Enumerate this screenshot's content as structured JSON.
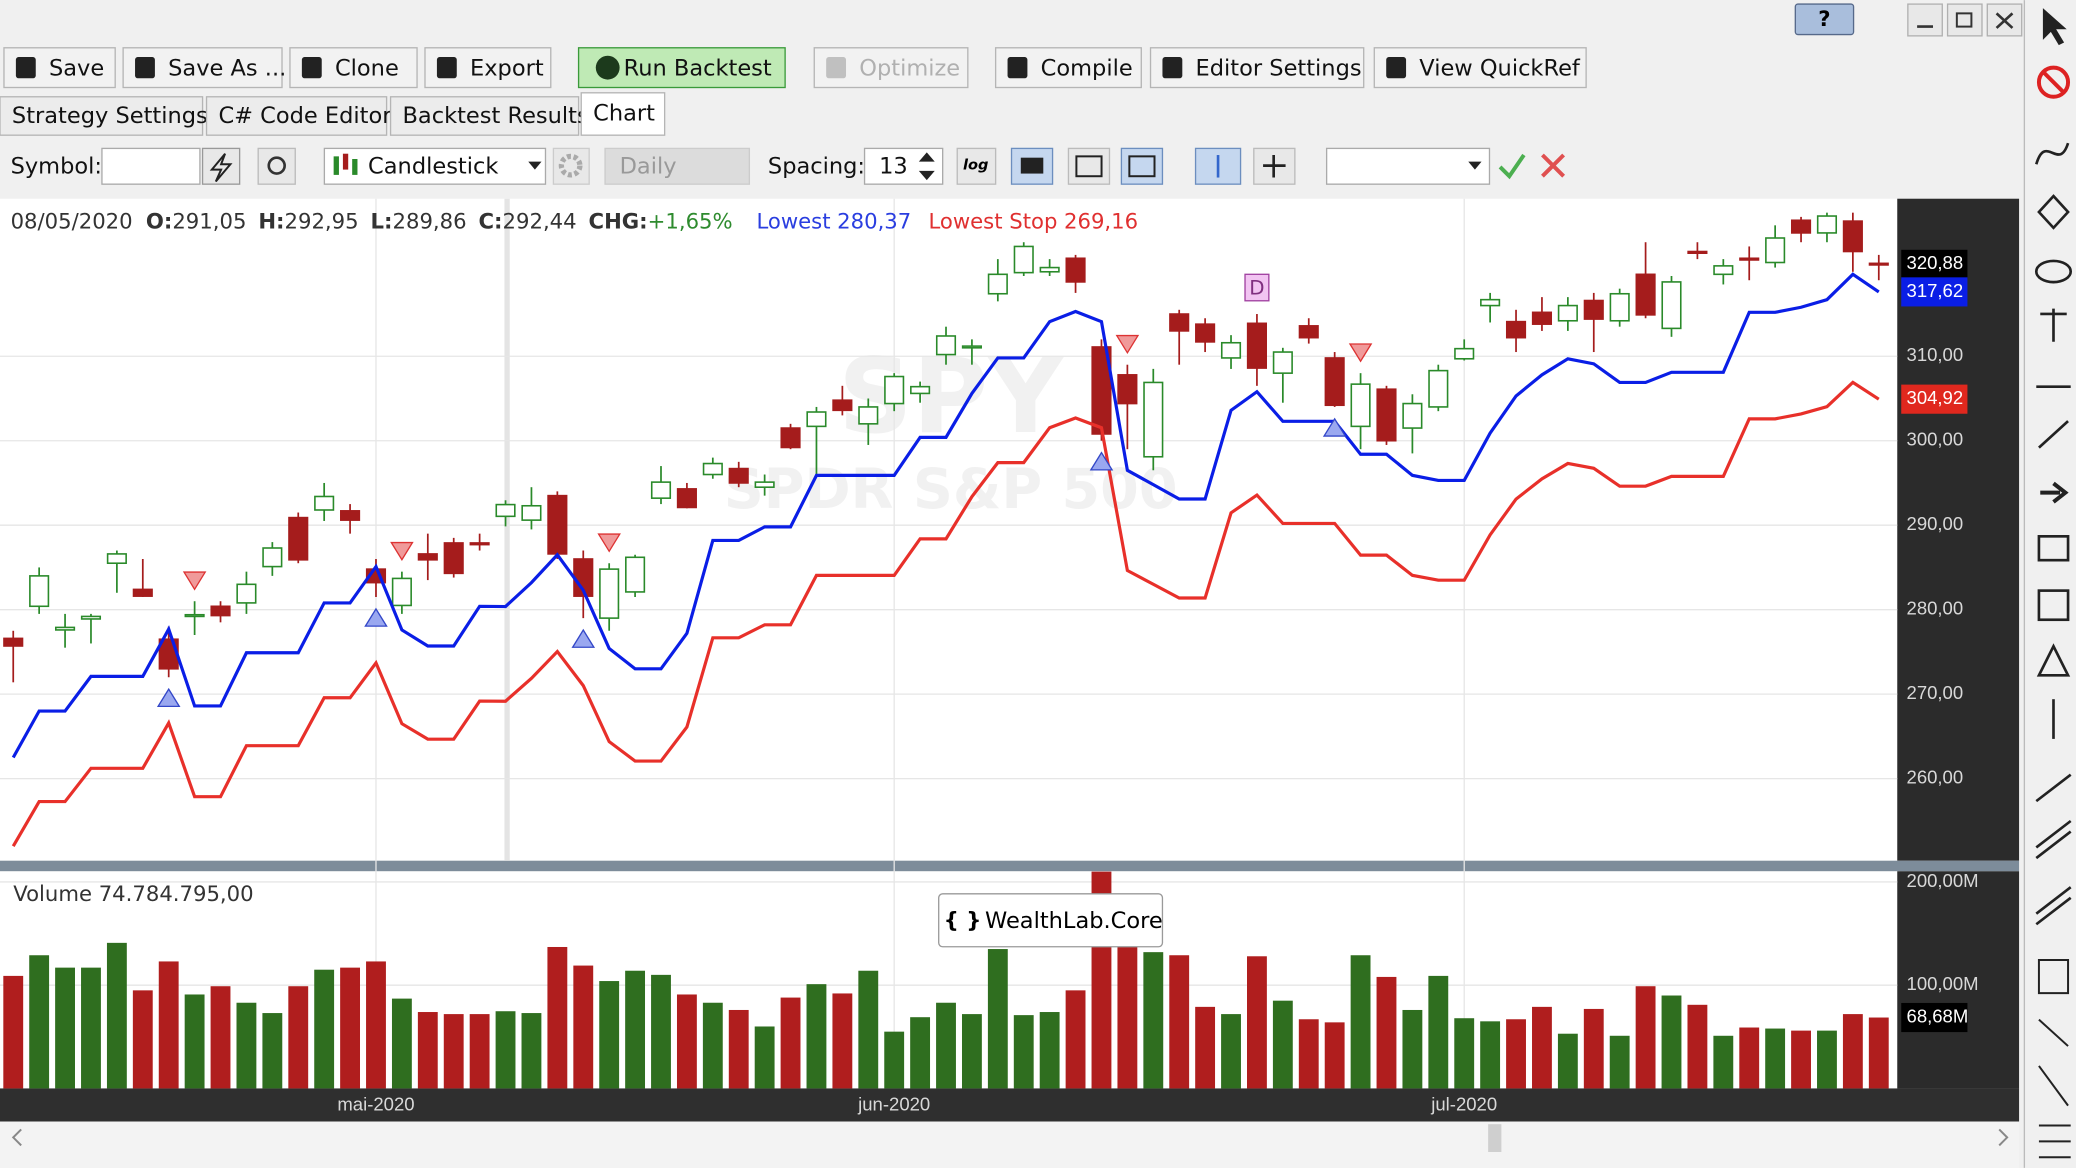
{
  "window": {
    "help": "?"
  },
  "toolbar": [
    "Save",
    "Save As ...",
    "Clone",
    "Export",
    "Run Backtest",
    "Optimize",
    "Compile",
    "Editor Settings",
    "View QuickRef"
  ],
  "tabs": [
    "Strategy Settings",
    "C# Code Editor",
    "Backtest Results",
    "Chart"
  ],
  "active_tab": "Chart",
  "symbol_bar": {
    "symbol_label": "Symbol:",
    "chart_style": "Candlestick",
    "scale": "Daily",
    "spacing_label": "Spacing:",
    "spacing": "13",
    "log": "log"
  },
  "header": {
    "date": "08/05/2020",
    "open_label": "O:",
    "open": "291,05",
    "high_label": "H:",
    "high": "292,95",
    "low_label": "L:",
    "low": "289,86",
    "close_label": "C:",
    "close": "292,44",
    "chg_label": "CHG:",
    "chg": "+1,65%",
    "lowest": "280,37",
    "lowest_stop": "269,16"
  },
  "watermark": {
    "symbol": "SPY",
    "name": "SPDR S&P 500"
  },
  "tooltip": {
    "icon": "{ }",
    "text": "WealthLab.Core"
  },
  "chart_data": [
    {
      "type": "candlestick",
      "categories": [
        null,
        null,
        null,
        null,
        null,
        null,
        null,
        null,
        null,
        null,
        null,
        null,
        null,
        null,
        "mai-2020",
        null,
        null,
        null,
        null,
        null,
        null,
        null,
        null,
        null,
        null,
        null,
        null,
        null,
        null,
        null,
        null,
        null,
        null,
        null,
        "jun-2020",
        null,
        null,
        null,
        null,
        null,
        null,
        null,
        null,
        null,
        null,
        null,
        null,
        null,
        null,
        null,
        null,
        null,
        null,
        null,
        null,
        null,
        "jul-2020",
        null,
        null,
        null,
        null,
        null,
        null,
        null,
        null,
        null,
        null,
        null,
        null,
        null,
        null,
        null,
        null
      ],
      "open": [
        276.6,
        280.4,
        277.6,
        278.9,
        285.5,
        282.4,
        276.5,
        279.2,
        280.4,
        280.8,
        285.1,
        290.9,
        291.8,
        291.7,
        284.8,
        280.5,
        286.6,
        287.9,
        287.9,
        291.05,
        290.6,
        293.5,
        286.0,
        279.0,
        282.1,
        293.2,
        294.3,
        296.0,
        296.7,
        294.5,
        301.5,
        301.7,
        304.8,
        302.0,
        304.4,
        305.6,
        310.2,
        311.0,
        317.4,
        319.9,
        320.0,
        321.6,
        311.1,
        307.8,
        298.1,
        315.0,
        313.8,
        309.8,
        313.9,
        308.0,
        313.6,
        309.8,
        301.7,
        306.1,
        301.5,
        304.0,
        309.7,
        316.0,
        314.1,
        315.2,
        314.2,
        316.6,
        314.2,
        319.7,
        313.3,
        322.4,
        319.7,
        321.6,
        321.1,
        326.1,
        324.6,
        326.0,
        321.0
      ],
      "high": [
        277.5,
        285,
        279.5,
        279.5,
        287,
        286,
        278,
        281,
        281,
        284.5,
        288,
        291.5,
        295,
        292.5,
        286,
        284.5,
        289,
        288.5,
        289,
        292.95,
        294.5,
        294,
        287,
        285.5,
        286.5,
        297,
        295,
        298,
        297.5,
        296,
        302,
        304,
        306.5,
        305,
        308,
        307,
        313.5,
        312,
        321.5,
        323.5,
        321.5,
        322,
        312,
        309,
        308.5,
        315.5,
        314.5,
        312.5,
        315,
        311,
        314.5,
        310.5,
        308,
        306.5,
        305.5,
        309,
        312,
        317.5,
        315.5,
        317,
        317,
        317.5,
        318,
        323.5,
        319.5,
        323.5,
        321.5,
        323,
        325.5,
        326.5,
        327,
        327,
        322
      ],
      "low": [
        271.4,
        279.5,
        275.5,
        276,
        282,
        281.5,
        272,
        277,
        278.5,
        279.5,
        284,
        285.5,
        290.5,
        289,
        281.5,
        279.5,
        283.5,
        283.8,
        287,
        289.86,
        289.5,
        286,
        279,
        277.5,
        281.5,
        292.5,
        292,
        295.5,
        294.5,
        293.5,
        299,
        296,
        303,
        299.5,
        303.5,
        304.5,
        309,
        309,
        316.5,
        319.5,
        319.5,
        317.5,
        300,
        299,
        296.5,
        309,
        310.5,
        308.5,
        306.5,
        304.5,
        311.5,
        304,
        299,
        299.5,
        298.5,
        303.5,
        309.5,
        314,
        310.5,
        313,
        313,
        310.5,
        313.5,
        314.5,
        312.3,
        321.5,
        318.5,
        319,
        320.5,
        323.5,
        323.5,
        320,
        319
      ],
      "close": [
        275.7,
        284.0,
        277.9,
        279.2,
        286.6,
        281.6,
        273.0,
        279.4,
        279.3,
        283.0,
        287.3,
        285.9,
        293.4,
        290.6,
        283.2,
        283.7,
        285.9,
        284.3,
        287.7,
        292.44,
        292.3,
        286.6,
        281.6,
        284.8,
        286.2,
        295.1,
        292.1,
        297.3,
        295.0,
        295.1,
        299.2,
        303.4,
        303.6,
        304.0,
        307.6,
        306.4,
        312.4,
        311.2,
        319.7,
        323.0,
        320.5,
        318.8,
        300.8,
        304.4,
        306.9,
        313.0,
        311.7,
        311.6,
        308.6,
        310.5,
        312.2,
        304.2,
        306.7,
        300.0,
        304.4,
        308.3,
        310.9,
        316.7,
        312.2,
        313.8,
        316.0,
        314.4,
        317.4,
        314.9,
        318.8,
        322.2,
        320.7,
        321.4,
        324.0,
        324.6,
        326.6,
        322.4,
        320.88
      ],
      "up_color": "#2a8a2a",
      "down_color": "#a51c1c",
      "series": [
        {
          "name": "Lowest",
          "color": "#0a1ee6",
          "values": [
            262.5,
            268.0,
            268.0,
            272.1,
            272.1,
            272.1,
            277.7,
            268.6,
            268.6,
            274.9,
            274.9,
            274.9,
            280.8,
            280.8,
            285.1,
            277.6,
            275.7,
            275.7,
            280.4,
            280.37,
            283.2,
            286.5,
            282.3,
            275.4,
            273.0,
            273.0,
            277.2,
            288.2,
            288.2,
            289.8,
            289.8,
            295.9,
            295.9,
            295.9,
            295.9,
            300.4,
            300.4,
            305.6,
            309.8,
            309.8,
            314.1,
            315.3,
            314.1,
            296.5,
            294.8,
            293.1,
            293.1,
            303.6,
            305.8,
            302.3,
            302.3,
            302.3,
            298.4,
            298.4,
            295.9,
            295.3,
            295.3,
            300.9,
            305.3,
            307.8,
            309.7,
            309.1,
            306.9,
            306.9,
            308.1,
            308.1,
            308.1,
            315.2,
            315.2,
            315.8,
            316.7,
            319.7,
            317.62
          ]
        },
        {
          "name": "Lowest Stop",
          "color": "#e8302a",
          "values": [
            252.0,
            257.28,
            257.28,
            261.22,
            261.22,
            261.22,
            266.59,
            257.86,
            257.86,
            263.9,
            263.9,
            263.9,
            269.57,
            269.57,
            273.7,
            266.5,
            264.67,
            264.67,
            269.18,
            269.16,
            271.87,
            275.04,
            271.01,
            264.38,
            262.08,
            262.08,
            266.11,
            276.67,
            276.67,
            278.21,
            278.21,
            284.06,
            284.06,
            284.06,
            284.06,
            288.38,
            288.38,
            293.38,
            297.41,
            297.41,
            301.54,
            302.69,
            301.54,
            284.64,
            283.01,
            281.38,
            281.38,
            291.46,
            293.57,
            290.21,
            290.21,
            290.21,
            286.46,
            286.46,
            284.06,
            283.49,
            283.49,
            288.86,
            293.09,
            295.49,
            297.31,
            296.74,
            294.62,
            294.62,
            295.78,
            295.78,
            295.78,
            302.59,
            302.59,
            303.17,
            304.03,
            306.91,
            304.92
          ]
        }
      ],
      "buy_signals": [
        6,
        14,
        22,
        42,
        51
      ],
      "buy_color": "#9aa8f0",
      "sell_signals": [
        7,
        15,
        23,
        43,
        52
      ],
      "sell_color": "#f09a9a",
      "annotations": [
        {
          "index": 48,
          "text": "D"
        }
      ],
      "price_markers": [
        {
          "value": 320.88,
          "label": "320,88",
          "color": "#000000"
        },
        {
          "value": 317.62,
          "label": "317,62",
          "color": "#0a1ee6"
        },
        {
          "value": 304.92,
          "label": "304,92",
          "color": "#e0281e"
        }
      ],
      "ylim": [
        250.28,
        328.65
      ],
      "yticks": [
        {
          "value": 260,
          "label": "260,00"
        },
        {
          "value": 270,
          "label": "270,00"
        },
        {
          "value": 280,
          "label": "280,00"
        },
        {
          "value": 290,
          "label": "290,00"
        },
        {
          "value": 300,
          "label": "300,00"
        },
        {
          "value": 310,
          "label": "310,00"
        }
      ],
      "grid": true
    },
    {
      "type": "bar",
      "title": "Volume 74.784.795,00",
      "values": [
        109,
        129,
        117,
        117,
        141,
        95,
        123,
        91,
        99,
        83,
        73,
        99,
        115,
        117,
        123,
        87,
        74,
        72,
        72,
        74.78,
        73,
        137,
        119,
        104,
        114,
        110,
        91,
        83,
        76,
        60,
        88,
        101,
        92,
        114,
        55,
        69,
        83,
        72,
        135,
        71,
        74,
        95,
        210,
        183,
        132,
        129,
        79,
        72,
        128,
        85,
        67,
        64,
        129,
        108,
        76,
        109,
        68,
        65,
        67,
        79,
        53,
        77,
        51,
        99,
        90,
        81,
        51,
        59,
        58,
        56,
        56,
        72,
        68.68
      ],
      "up_color": "#2f6e1f",
      "down_color": "#b01e1e",
      "markers": [
        {
          "value": 68.68,
          "label": "68,68M",
          "color": "#000000"
        }
      ],
      "ylim": [
        0,
        210.3
      ],
      "yticks": [
        {
          "value": 100,
          "label": "100,00M"
        },
        {
          "value": 200,
          "label": "200,00M"
        }
      ]
    }
  ]
}
